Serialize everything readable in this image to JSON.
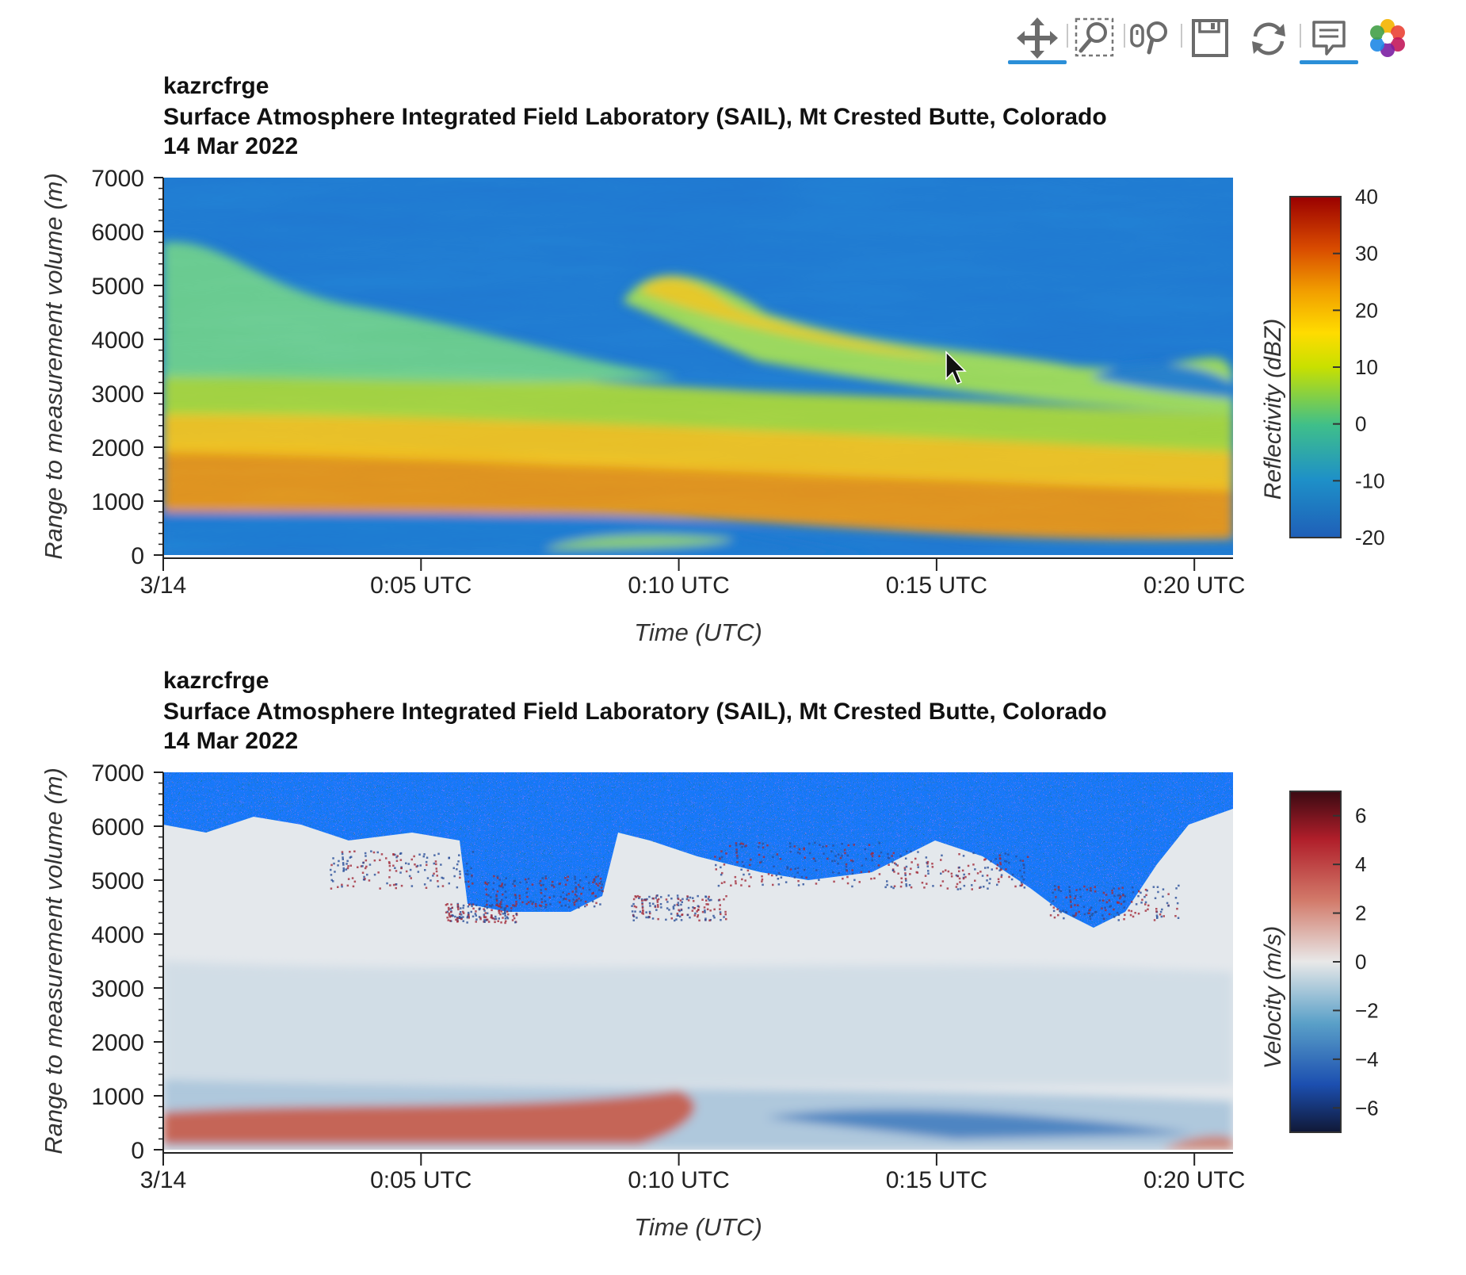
{
  "toolbar": {
    "tools": [
      {
        "name": "pan-tool",
        "icon": "pan-move-icon",
        "active": true
      },
      {
        "name": "box-zoom-tool",
        "icon": "box-zoom-icon",
        "active": false
      },
      {
        "name": "wheel-zoom-tool",
        "icon": "wheel-zoom-icon",
        "active": false
      },
      {
        "name": "save-tool",
        "icon": "save-icon",
        "active": false
      },
      {
        "name": "reset-tool",
        "icon": "reset-icon",
        "active": false
      },
      {
        "name": "hover-tool",
        "icon": "hover-tooltip-icon",
        "active": true
      },
      {
        "name": "bokeh-logo",
        "icon": "bokeh-logo-icon",
        "active": false
      }
    ],
    "accent_color": "#2b8fd8"
  },
  "chart_data": [
    {
      "type": "heatmap",
      "title": "kazrcfrge",
      "subtitle_site": "Surface Atmosphere Integrated Field Laboratory (SAIL), Mt Crested Butte, Colorado",
      "subtitle_date": "14 Mar 2022",
      "xlabel": "Time (UTC)",
      "ylabel": "Range to measurement volume (m)",
      "x_ticks": [
        "3/14",
        "0:05 UTC",
        "0:10 UTC",
        "0:15 UTC",
        "0:20 UTC"
      ],
      "x_tick_minutes": [
        0,
        5,
        10,
        15,
        20
      ],
      "xlim_minutes": [
        0,
        20.75
      ],
      "y_ticks": [
        0,
        1000,
        2000,
        3000,
        4000,
        5000,
        6000,
        7000
      ],
      "ylim": [
        0,
        7000
      ],
      "colorbar": {
        "label": "Reflectivity (dBZ)",
        "ticks": [
          40,
          30,
          20,
          10,
          0,
          -10,
          -20
        ],
        "range": [
          -20,
          40
        ],
        "colormap": "jet-like"
      },
      "field": "reflectivity"
    },
    {
      "type": "heatmap",
      "title": "kazrcfrge",
      "subtitle_site": "Surface Atmosphere Integrated Field Laboratory (SAIL), Mt Crested Butte, Colorado",
      "subtitle_date": "14 Mar 2022",
      "xlabel": "Time (UTC)",
      "ylabel": "Range to measurement volume (m)",
      "x_ticks": [
        "3/14",
        "0:05 UTC",
        "0:10 UTC",
        "0:15 UTC",
        "0:20 UTC"
      ],
      "x_tick_minutes": [
        0,
        5,
        10,
        15,
        20
      ],
      "xlim_minutes": [
        0,
        20.75
      ],
      "y_ticks": [
        0,
        1000,
        2000,
        3000,
        4000,
        5000,
        6000,
        7000
      ],
      "ylim": [
        0,
        7000
      ],
      "colorbar": {
        "label": "Velocity (m/s)",
        "ticks": [
          6,
          4,
          2,
          0,
          "−2",
          "−4",
          "−6"
        ],
        "tick_values": [
          6,
          4,
          2,
          0,
          -2,
          -4,
          -6
        ],
        "range": [
          -7,
          7
        ],
        "colormap": "diverging-red-blue"
      },
      "field": "velocity"
    }
  ]
}
